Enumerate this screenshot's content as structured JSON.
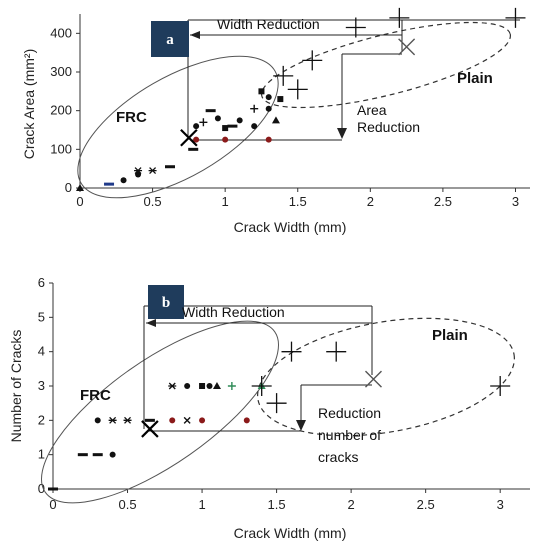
{
  "chart_data": [
    {
      "type": "scatter",
      "panel_label": "a",
      "xlabel": "Crack Width (mm)",
      "ylabel": "Crack Area (mm²)",
      "xlim": [
        0,
        3.1
      ],
      "ylim": [
        0,
        450
      ],
      "x_ticks": [
        "0",
        "0.5",
        "1",
        "1.5",
        "2",
        "2.5",
        "3"
      ],
      "y_ticks": [
        "0",
        "100",
        "200",
        "300",
        "400"
      ],
      "series": [
        {
          "name": "FRC",
          "marker": "mixed",
          "color": "#000000",
          "points": [
            {
              "x": 0.0,
              "y": 0,
              "m": "tri"
            },
            {
              "x": 0.2,
              "y": 10,
              "m": "dash",
              "c": "#1f3a8a"
            },
            {
              "x": 0.3,
              "y": 20,
              "m": "dot"
            },
            {
              "x": 0.4,
              "y": 35,
              "m": "dot"
            },
            {
              "x": 0.4,
              "y": 45,
              "m": "star"
            },
            {
              "x": 0.5,
              "y": 45,
              "m": "star"
            },
            {
              "x": 0.62,
              "y": 55,
              "m": "dash"
            },
            {
              "x": 0.78,
              "y": 100,
              "m": "dash"
            },
            {
              "x": 0.8,
              "y": 125,
              "m": "dot",
              "c": "#8b1a1a"
            },
            {
              "x": 1.0,
              "y": 125,
              "m": "dot",
              "c": "#8b1a1a"
            },
            {
              "x": 1.3,
              "y": 125,
              "m": "dot",
              "c": "#8b1a1a"
            },
            {
              "x": 0.8,
              "y": 160,
              "m": "dot"
            },
            {
              "x": 0.85,
              "y": 170,
              "m": "plus"
            },
            {
              "x": 0.9,
              "y": 200,
              "m": "dash"
            },
            {
              "x": 0.95,
              "y": 180,
              "m": "dot"
            },
            {
              "x": 1.0,
              "y": 155,
              "m": "sq"
            },
            {
              "x": 1.05,
              "y": 160,
              "m": "dash"
            },
            {
              "x": 1.1,
              "y": 175,
              "m": "dot"
            },
            {
              "x": 1.2,
              "y": 205,
              "m": "plus"
            },
            {
              "x": 1.25,
              "y": 250,
              "m": "sq"
            },
            {
              "x": 1.2,
              "y": 160,
              "m": "dot"
            },
            {
              "x": 1.3,
              "y": 205,
              "m": "dot"
            },
            {
              "x": 1.35,
              "y": 175,
              "m": "tri"
            },
            {
              "x": 1.38,
              "y": 230,
              "m": "sq"
            },
            {
              "x": 1.3,
              "y": 235,
              "m": "dot"
            }
          ]
        },
        {
          "name": "Plain",
          "marker": "plus",
          "color": "#000000",
          "points": [
            {
              "x": 1.4,
              "y": 290
            },
            {
              "x": 1.5,
              "y": 255
            },
            {
              "x": 1.6,
              "y": 330
            },
            {
              "x": 1.9,
              "y": 415
            },
            {
              "x": 2.2,
              "y": 440
            },
            {
              "x": 3.0,
              "y": 440
            }
          ]
        }
      ],
      "averages": [
        {
          "name": "FRC",
          "x": 0.75,
          "y": 130
        },
        {
          "name": "Plain",
          "x": 2.25,
          "y": 365
        }
      ],
      "annotations": [
        "Width Reduction",
        "Area Reduction",
        "FRC",
        "Plain"
      ],
      "annotation_lines": {
        "area": [
          "Area",
          "Reduction"
        ]
      }
    },
    {
      "type": "scatter",
      "panel_label": "b",
      "xlabel": "Crack Width (mm)",
      "ylabel": "Number of Cracks",
      "xlim": [
        0,
        3.2
      ],
      "ylim": [
        0,
        6
      ],
      "x_ticks": [
        "0",
        "0.5",
        "1",
        "1.5",
        "2",
        "2.5",
        "3"
      ],
      "y_ticks": [
        "0",
        "1",
        "2",
        "3",
        "4",
        "5",
        "6"
      ],
      "series": [
        {
          "name": "FRC",
          "marker": "mixed",
          "color": "#000000",
          "points": [
            {
              "x": 0.0,
              "y": 0,
              "m": "dash"
            },
            {
              "x": 0.2,
              "y": 1,
              "m": "dash"
            },
            {
              "x": 0.3,
              "y": 1,
              "m": "dash"
            },
            {
              "x": 0.4,
              "y": 1,
              "m": "dot"
            },
            {
              "x": 0.3,
              "y": 2,
              "m": "dot"
            },
            {
              "x": 0.4,
              "y": 2,
              "m": "star"
            },
            {
              "x": 0.5,
              "y": 2,
              "m": "star"
            },
            {
              "x": 0.65,
              "y": 2,
              "m": "dash"
            },
            {
              "x": 0.8,
              "y": 2,
              "m": "dot",
              "c": "#8b1a1a"
            },
            {
              "x": 0.9,
              "y": 2,
              "m": "x"
            },
            {
              "x": 1.0,
              "y": 2,
              "m": "dot",
              "c": "#8b1a1a"
            },
            {
              "x": 1.3,
              "y": 2,
              "m": "dot",
              "c": "#8b1a1a"
            },
            {
              "x": 0.8,
              "y": 3,
              "m": "star"
            },
            {
              "x": 0.9,
              "y": 3,
              "m": "dot"
            },
            {
              "x": 1.0,
              "y": 3,
              "m": "sq"
            },
            {
              "x": 1.05,
              "y": 3,
              "m": "dot"
            },
            {
              "x": 1.1,
              "y": 3,
              "m": "tri"
            },
            {
              "x": 1.2,
              "y": 3,
              "m": "plus",
              "c": "#2e8b57"
            },
            {
              "x": 1.4,
              "y": 3,
              "m": "tri",
              "c": "#2e8b57"
            }
          ]
        },
        {
          "name": "Plain",
          "marker": "plus",
          "color": "#000000",
          "points": [
            {
              "x": 1.4,
              "y": 3
            },
            {
              "x": 1.5,
              "y": 2.5
            },
            {
              "x": 1.6,
              "y": 4
            },
            {
              "x": 1.9,
              "y": 4
            },
            {
              "x": 3.0,
              "y": 3
            }
          ]
        }
      ],
      "averages": [
        {
          "name": "FRC",
          "x": 0.65,
          "y": 1.75
        },
        {
          "name": "Plain",
          "x": 2.15,
          "y": 3.2
        }
      ],
      "annotations": [
        "Width Reduction",
        "Reduction number of cracks",
        "FRC",
        "Plain"
      ],
      "annotation_lines": {
        "count": [
          "Reduction",
          "number of",
          "cracks"
        ]
      }
    }
  ]
}
